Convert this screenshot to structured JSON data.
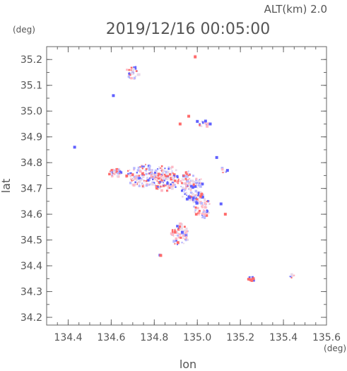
{
  "header": {
    "altitude_label": "ALT(km) 2.0",
    "datetime": "2019/12/16 00:05:00"
  },
  "colors": {
    "axis": "#666666",
    "text": "#555555",
    "positive": "#ff6b6b",
    "positive_light": "#ffb8c4",
    "negative": "#6060ff",
    "negative_light": "#b9b9ff",
    "neutral": "#e8d8e8"
  },
  "chart_data": {
    "type": "scatter",
    "title": "2019/12/16 00:05:00",
    "xlabel": "lon",
    "ylabel": "lat",
    "x_unit": "(deg)",
    "y_unit": "(deg)",
    "xlim": [
      134.3,
      135.6
    ],
    "ylim": [
      34.17,
      35.25
    ],
    "x_ticks": [
      134.4,
      134.6,
      134.8,
      135.0,
      135.2,
      135.4,
      135.6
    ],
    "x_tick_labels": [
      "134.4",
      "134.6",
      "134.8",
      "135.0",
      "135.2",
      "135.4",
      "135.6"
    ],
    "y_ticks": [
      34.2,
      34.3,
      34.4,
      34.5,
      34.6,
      34.7,
      34.8,
      34.9,
      35.0,
      35.1,
      35.2
    ],
    "y_tick_labels": [
      "34.2",
      "34.3",
      "34.4",
      "34.5",
      "34.6",
      "34.7",
      "34.8",
      "34.9",
      "35.0",
      "35.1",
      "35.2"
    ],
    "grid": false,
    "legend": "none",
    "clusters": [
      {
        "lon": 134.7,
        "lat": 35.15,
        "r_lon": 0.035,
        "r_lat": 0.025,
        "n": 28
      },
      {
        "lon": 134.99,
        "lat": 35.21,
        "r_lon": 0.004,
        "r_lat": 0.004,
        "n": 3
      },
      {
        "lon": 134.62,
        "lat": 34.76,
        "r_lon": 0.03,
        "r_lat": 0.015,
        "n": 30
      },
      {
        "lon": 134.74,
        "lat": 34.75,
        "r_lon": 0.07,
        "r_lat": 0.045,
        "n": 110
      },
      {
        "lon": 134.85,
        "lat": 34.74,
        "r_lon": 0.07,
        "r_lat": 0.05,
        "n": 150
      },
      {
        "lon": 134.97,
        "lat": 34.71,
        "r_lon": 0.055,
        "r_lat": 0.06,
        "n": 110
      },
      {
        "lon": 135.02,
        "lat": 34.63,
        "r_lon": 0.04,
        "r_lat": 0.05,
        "n": 70
      },
      {
        "lon": 134.92,
        "lat": 34.52,
        "r_lon": 0.04,
        "r_lat": 0.045,
        "n": 60
      },
      {
        "lon": 135.03,
        "lat": 34.95,
        "r_lon": 0.03,
        "r_lat": 0.012,
        "n": 14
      },
      {
        "lon": 135.12,
        "lat": 34.77,
        "r_lon": 0.015,
        "r_lat": 0.012,
        "n": 8
      },
      {
        "lon": 135.25,
        "lat": 34.35,
        "r_lon": 0.015,
        "r_lat": 0.01,
        "n": 16
      },
      {
        "lon": 135.44,
        "lat": 34.36,
        "r_lon": 0.012,
        "r_lat": 0.008,
        "n": 8
      },
      {
        "lon": 134.83,
        "lat": 34.44,
        "r_lon": 0.006,
        "r_lat": 0.006,
        "n": 4
      }
    ],
    "points": [
      {
        "lon": 134.43,
        "lat": 34.86,
        "v": -1
      },
      {
        "lon": 134.92,
        "lat": 34.95,
        "v": 1
      },
      {
        "lon": 134.61,
        "lat": 35.06,
        "v": -0.3
      },
      {
        "lon": 134.83,
        "lat": 34.44,
        "v": 1
      },
      {
        "lon": 135.25,
        "lat": 34.345,
        "v": 1
      },
      {
        "lon": 135.26,
        "lat": 34.35,
        "v": 1
      },
      {
        "lon": 135.24,
        "lat": 34.348,
        "v": 1
      },
      {
        "lon": 134.99,
        "lat": 35.21,
        "v": 1
      },
      {
        "lon": 135.06,
        "lat": 34.95,
        "v": -1
      },
      {
        "lon": 135.0,
        "lat": 34.96,
        "v": -0.6
      },
      {
        "lon": 134.96,
        "lat": 34.98,
        "v": 0.4
      },
      {
        "lon": 135.13,
        "lat": 34.6,
        "v": 0.5
      },
      {
        "lon": 135.11,
        "lat": 34.64,
        "v": -0.5
      },
      {
        "lon": 135.14,
        "lat": 34.77,
        "v": -1
      },
      {
        "lon": 135.09,
        "lat": 34.82,
        "v": -0.4
      },
      {
        "lon": 134.93,
        "lat": 34.53,
        "v": -1
      },
      {
        "lon": 134.91,
        "lat": 34.49,
        "v": 1
      }
    ]
  }
}
